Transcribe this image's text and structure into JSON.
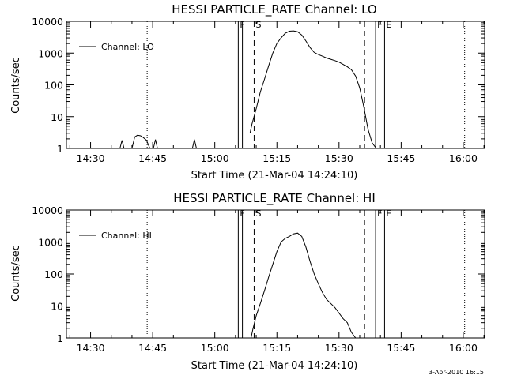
{
  "footer_timestamp": "3-Apr-2010 16:15",
  "chart_data": [
    {
      "type": "line",
      "title": "HESSI PARTICLE_RATE Channel: LO",
      "xlabel": "Start Time (21-Mar-04 14:24:10)",
      "ylabel": "Counts/sec",
      "yscale": "log",
      "xlim": [
        "14:24:10",
        "16:05:10"
      ],
      "ylim": [
        1,
        10000
      ],
      "x_ticks": [
        "14:30",
        "14:45",
        "15:00",
        "15:15",
        "15:30",
        "15:45",
        "16:00"
      ],
      "y_ticks": [
        "1",
        "10",
        "100",
        "1000",
        "10000"
      ],
      "legend": {
        "entries": [
          "Channel: LO"
        ],
        "placement": "top-left"
      },
      "grid": false,
      "series": [
        {
          "name": "Channel: LO",
          "bursts": [
            {
              "x": [
                "14:37:05",
                "14:37:35",
                "14:38:05"
              ],
              "y": [
                1,
                1.8,
                1
              ]
            },
            {
              "x": [
                "14:40:00",
                "14:40:40",
                "14:41:20",
                "14:42:05",
                "14:42:45",
                "14:43:30",
                "14:44:20"
              ],
              "y": [
                1,
                2.3,
                2.6,
                2.5,
                2.2,
                1.8,
                1
              ]
            },
            {
              "x": [
                "14:45:10",
                "14:45:40",
                "14:46:10"
              ],
              "y": [
                1,
                1.9,
                1
              ]
            },
            {
              "x": [
                "14:54:35",
                "14:55:05",
                "14:55:35"
              ],
              "y": [
                1,
                1.9,
                1
              ]
            }
          ],
          "x": [
            "15:08:30",
            "15:09:00",
            "15:10:00",
            "15:11:00",
            "15:12:00",
            "15:13:00",
            "15:14:00",
            "15:15:00",
            "15:16:00",
            "15:17:00",
            "15:18:00",
            "15:19:00",
            "15:20:00",
            "15:21:00",
            "15:22:00",
            "15:23:00",
            "15:24:00",
            "15:25:00",
            "15:26:00",
            "15:27:00",
            "15:28:00",
            "15:29:00",
            "15:30:00",
            "15:31:00",
            "15:32:00",
            "15:33:00",
            "15:34:00",
            "15:35:00",
            "15:36:00",
            "15:37:00",
            "15:38:00",
            "15:39:00"
          ],
          "y": [
            3,
            6,
            18,
            60,
            150,
            400,
            1000,
            2000,
            3000,
            4200,
            4900,
            5000,
            4700,
            3700,
            2400,
            1500,
            1050,
            900,
            800,
            700,
            640,
            580,
            520,
            440,
            370,
            300,
            190,
            80,
            20,
            4,
            1.5,
            1
          ]
        }
      ],
      "vertical_markers": [
        {
          "label": "F",
          "time": "15:05:40",
          "style": "solid"
        },
        {
          "label": "",
          "time": "15:06:40",
          "style": "solid"
        },
        {
          "label": "S",
          "time": "15:09:30",
          "style": "dashed"
        },
        {
          "label": "",
          "time": "15:36:10",
          "style": "dashed"
        },
        {
          "label": "F",
          "time": "15:38:50",
          "style": "solid"
        },
        {
          "label": "E",
          "time": "15:41:00",
          "style": "solid"
        },
        {
          "label": "",
          "time": "14:43:40",
          "style": "dotted"
        },
        {
          "label": "",
          "time": "16:00:20",
          "style": "dotted"
        }
      ]
    },
    {
      "type": "line",
      "title": "HESSI PARTICLE_RATE Channel: HI",
      "xlabel": "Start Time (21-Mar-04 14:24:10)",
      "ylabel": "Counts/sec",
      "yscale": "log",
      "xlim": [
        "14:24:10",
        "16:05:10"
      ],
      "ylim": [
        1,
        10000
      ],
      "x_ticks": [
        "14:30",
        "14:45",
        "15:00",
        "15:15",
        "15:30",
        "15:45",
        "16:00"
      ],
      "y_ticks": [
        "1",
        "10",
        "100",
        "1000",
        "10000"
      ],
      "legend": {
        "entries": [
          "Channel: HI"
        ],
        "placement": "top-left"
      },
      "grid": false,
      "series": [
        {
          "name": "Channel: HI",
          "bursts": [],
          "x": [
            "15:08:45",
            "15:09:15",
            "15:10:00",
            "15:11:00",
            "15:12:00",
            "15:13:00",
            "15:14:00",
            "15:15:00",
            "15:16:00",
            "15:17:00",
            "15:18:00",
            "15:19:00",
            "15:20:00",
            "15:21:00",
            "15:22:00",
            "15:23:00",
            "15:24:00",
            "15:25:00",
            "15:26:00",
            "15:27:00",
            "15:28:00",
            "15:29:00",
            "15:30:00",
            "15:31:00",
            "15:32:00",
            "15:33:00",
            "15:34:00"
          ],
          "y": [
            1,
            2,
            5,
            12,
            30,
            80,
            200,
            500,
            1000,
            1300,
            1500,
            1800,
            1900,
            1500,
            700,
            250,
            100,
            50,
            26,
            16,
            12,
            9,
            6,
            4,
            3,
            1.5,
            1
          ]
        }
      ],
      "vertical_markers": [
        {
          "label": "F",
          "time": "15:05:40",
          "style": "solid"
        },
        {
          "label": "",
          "time": "15:06:40",
          "style": "solid"
        },
        {
          "label": "S",
          "time": "15:09:30",
          "style": "dashed"
        },
        {
          "label": "",
          "time": "15:36:10",
          "style": "dashed"
        },
        {
          "label": "F",
          "time": "15:38:50",
          "style": "solid"
        },
        {
          "label": "E",
          "time": "15:41:00",
          "style": "solid"
        },
        {
          "label": "",
          "time": "14:43:40",
          "style": "dotted"
        },
        {
          "label": "",
          "time": "16:00:20",
          "style": "dotted"
        }
      ]
    }
  ]
}
